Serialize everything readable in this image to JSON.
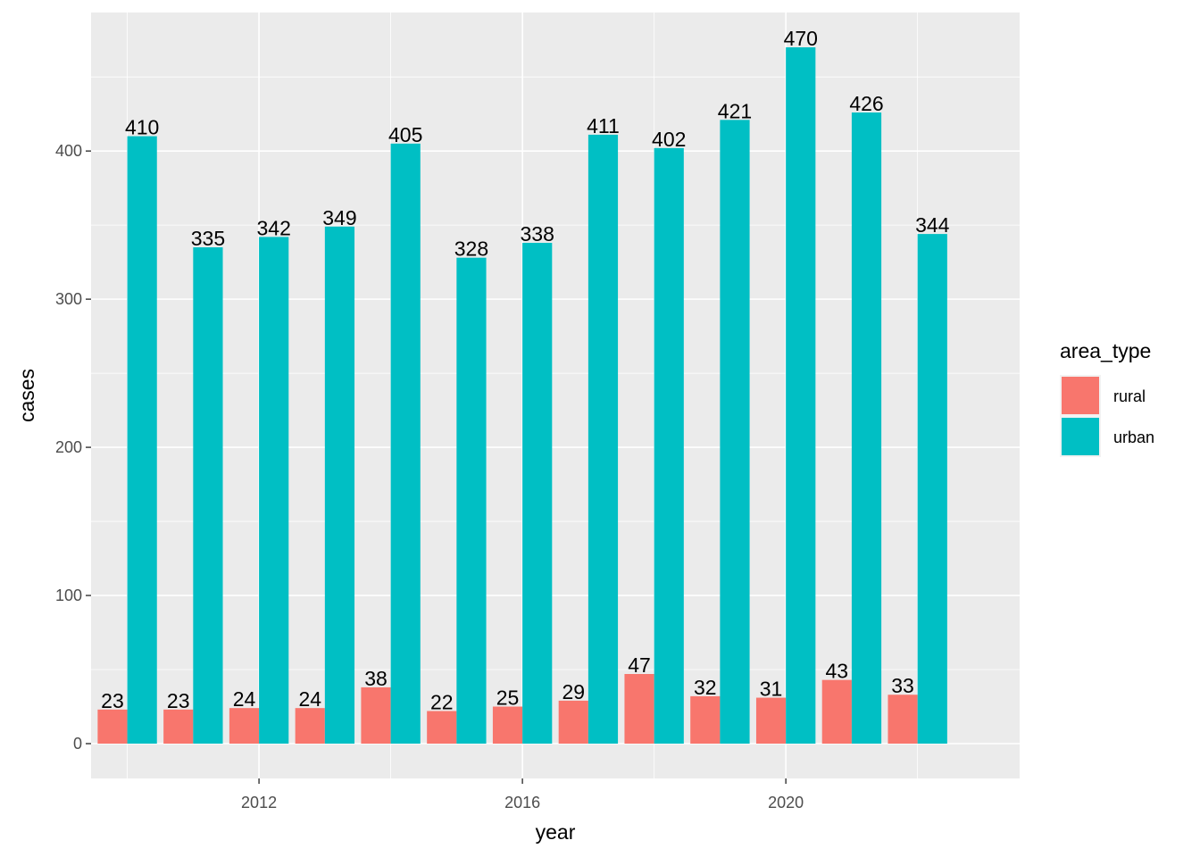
{
  "chart_data": {
    "type": "bar",
    "xlabel": "year",
    "ylabel": "cases",
    "x": [
      2010,
      2011,
      2012,
      2013,
      2014,
      2015,
      2016,
      2017,
      2018,
      2019,
      2020,
      2021,
      2022
    ],
    "x_ticks": [
      2012,
      2016,
      2020
    ],
    "y_ticks": [
      0,
      100,
      200,
      300,
      400
    ],
    "xlim": [
      2009.45,
      2023.55
    ],
    "ylim": [
      -23.5,
      493.5
    ],
    "grid": true,
    "legend": {
      "title": "area_type",
      "position": "right"
    },
    "series": [
      {
        "name": "rural",
        "color": "#F8766D",
        "values": [
          23,
          23,
          24,
          24,
          38,
          22,
          25,
          29,
          47,
          32,
          31,
          43,
          33
        ]
      },
      {
        "name": "urban",
        "color": "#00BFC4",
        "values": [
          410,
          335,
          342,
          349,
          405,
          328,
          338,
          411,
          402,
          421,
          470,
          426,
          344
        ]
      }
    ],
    "panel_background": "#EBEBEB",
    "grid_color": "#FFFFFF"
  }
}
